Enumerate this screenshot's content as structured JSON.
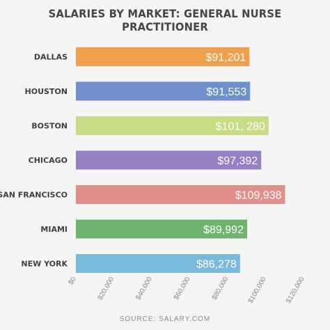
{
  "chart_data": {
    "type": "bar",
    "orientation": "horizontal",
    "title": "SALARIES BY MARKET: GENERAL NURSE PRACTITIONER",
    "source": "SOURCE: SALARY.COM",
    "categories": [
      "DALLAS",
      "HOUSTON",
      "BOSTON",
      "CHICAGO",
      "SAN FRANCISCO",
      "MIAMI",
      "NEW YORK"
    ],
    "values": [
      91201,
      91553,
      101280,
      97392,
      109938,
      89992,
      86278
    ],
    "value_labels": [
      "$91,201",
      "$91,553",
      "$101, 280",
      "$97,392",
      "$109,938",
      "$89,992",
      "$86,278"
    ],
    "colors": [
      "#f0a04b",
      "#6f8fcf",
      "#c6dd86",
      "#9580c2",
      "#e08f8b",
      "#6fb36f",
      "#78b9dc"
    ],
    "xlim": [
      0,
      120000
    ],
    "xticks": [
      0,
      20000,
      40000,
      60000,
      80000,
      100000,
      120000
    ],
    "xtick_labels": [
      "$0",
      "$20,000",
      "$40,000",
      "$60,000",
      "$80,000",
      "$100,000",
      "$120,000"
    ],
    "grid": false,
    "legend": "none"
  }
}
